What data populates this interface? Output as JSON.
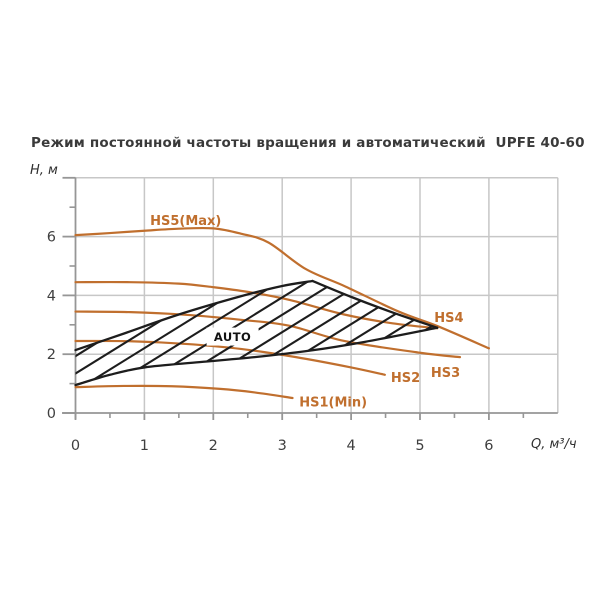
{
  "title": "Режим постоянной частоты вращения и автоматический  UPFE 40-60",
  "colors": {
    "curve": "#c06f2e",
    "hatch": "#1d1d1d",
    "grid": "#c7c7c7",
    "axis": "#969696",
    "tick_text": "#3f3f3f",
    "title_text": "#3a3a3a",
    "auto_text": "#111111",
    "background": "#ffffff"
  },
  "chart_data": {
    "type": "line",
    "title": "Режим постоянной частоты вращения и автоматический  UPFE 40-60",
    "xlabel": "Q, м³/ч",
    "ylabel": "H, м",
    "xlim": [
      0,
      7
    ],
    "ylim": [
      0,
      8
    ],
    "grid": true,
    "x_major_ticks": [
      0,
      1,
      2,
      3,
      4,
      5,
      6
    ],
    "x_minor_step": 0.5,
    "y_major_ticks": [
      0,
      2,
      4,
      6
    ],
    "y_minor_ticks": [
      1,
      3,
      5,
      7
    ],
    "x_gridlines": [
      1,
      2,
      3,
      4,
      5,
      6,
      7
    ],
    "y_gridlines": [
      2,
      4,
      6,
      8
    ],
    "series": [
      {
        "name": "HS5(Max)",
        "points": [
          [
            0,
            6.05
          ],
          [
            0.5,
            6.12
          ],
          [
            1,
            6.2
          ],
          [
            1.5,
            6.27
          ],
          [
            2,
            6.28
          ],
          [
            2.4,
            6.1
          ],
          [
            2.8,
            5.8
          ],
          [
            3.34,
            4.9
          ],
          [
            3.92,
            4.3
          ],
          [
            4.69,
            3.45
          ],
          [
            5.27,
            2.94
          ],
          [
            6.0,
            2.2
          ]
        ],
        "label_pos": [
          1.6,
          6.55
        ]
      },
      {
        "name": "HS4",
        "points": [
          [
            0,
            4.45
          ],
          [
            0.8,
            4.45
          ],
          [
            1.5,
            4.4
          ],
          [
            2.0,
            4.28
          ],
          [
            2.5,
            4.12
          ],
          [
            3.1,
            3.85
          ],
          [
            3.9,
            3.35
          ],
          [
            4.6,
            3.05
          ],
          [
            5.25,
            2.88
          ]
        ],
        "label_pos": [
          5.42,
          3.25
        ]
      },
      {
        "name": "HS3",
        "points": [
          [
            0,
            3.45
          ],
          [
            0.8,
            3.43
          ],
          [
            1.6,
            3.34
          ],
          [
            2.4,
            3.17
          ],
          [
            3.1,
            2.97
          ],
          [
            3.9,
            2.45
          ],
          [
            5.0,
            2.05
          ],
          [
            5.58,
            1.9
          ]
        ],
        "label_pos": [
          5.37,
          1.38
        ]
      },
      {
        "name": "HS2",
        "points": [
          [
            0,
            2.45
          ],
          [
            0.8,
            2.44
          ],
          [
            1.6,
            2.35
          ],
          [
            2.4,
            2.18
          ],
          [
            3.2,
            1.9
          ],
          [
            4.0,
            1.55
          ],
          [
            4.49,
            1.3
          ]
        ],
        "label_pos": [
          4.79,
          1.2
        ]
      },
      {
        "name": "HS1(Min)",
        "points": [
          [
            0,
            0.88
          ],
          [
            0.7,
            0.92
          ],
          [
            1.4,
            0.91
          ],
          [
            2.1,
            0.82
          ],
          [
            2.6,
            0.7
          ],
          [
            3.15,
            0.51
          ]
        ],
        "label_pos": [
          3.74,
          0.38
        ]
      }
    ],
    "auto_region": {
      "label": "AUTO",
      "label_pos": [
        2.28,
        2.6
      ],
      "upper": [
        [
          0,
          2.14
        ],
        [
          0.7,
          2.7
        ],
        [
          1.5,
          3.35
        ],
        [
          2.4,
          3.97
        ],
        [
          3.0,
          4.32
        ],
        [
          3.44,
          4.49
        ],
        [
          4.0,
          3.95
        ],
        [
          4.6,
          3.42
        ],
        [
          5.25,
          2.9
        ]
      ],
      "lower": [
        [
          0,
          0.95
        ],
        [
          0.5,
          1.3
        ],
        [
          1.0,
          1.55
        ],
        [
          1.8,
          1.73
        ],
        [
          2.6,
          1.9
        ],
        [
          3.4,
          2.12
        ],
        [
          4.2,
          2.42
        ],
        [
          5.25,
          2.9
        ]
      ]
    }
  }
}
